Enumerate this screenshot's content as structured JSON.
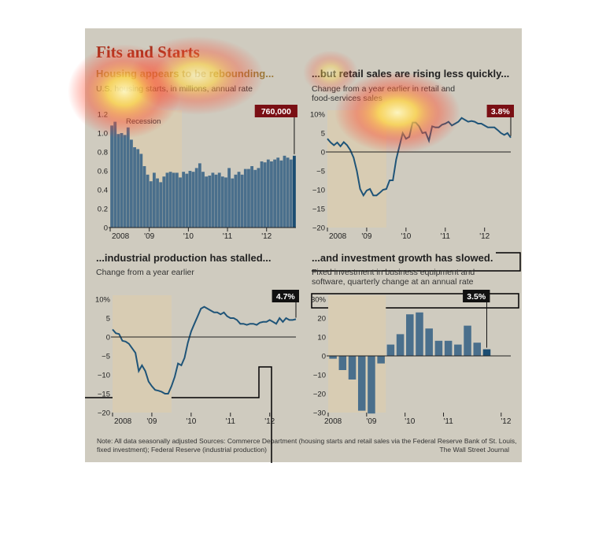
{
  "title": "Fits and Starts",
  "colors": {
    "panel_bg": "#cfcbbf",
    "recession_band": "#d8ccb3",
    "bar_blue": "#4a6f8c",
    "bar_highlight": "#1b4d72",
    "line_blue": "#1f5478",
    "title_red": "#a8321e",
    "callout_red": "#7a0f14",
    "callout_black": "#111111",
    "text": "#333333"
  },
  "chart_data": [
    {
      "id": "housing",
      "type": "bar",
      "title": "Housing appears to be rebounding...",
      "subtitle": "U.S. housing starts, in millions, annual rate",
      "shaded_label": "Recession",
      "callout": "760,000",
      "callout_color": "red",
      "shaded_range": [
        0,
        22
      ],
      "ylim": [
        0,
        1.2
      ],
      "yticks": [
        0,
        0.2,
        0.4,
        0.6,
        0.8,
        1.0,
        1.2
      ],
      "ytick_labels": [
        "0",
        "0.2",
        "0.4",
        "0.6",
        "0.8",
        "1.0",
        "1.2"
      ],
      "xlim": [
        0,
        57
      ],
      "xticks": [
        {
          "pos": 0,
          "label": "2008"
        },
        {
          "pos": 12,
          "label": "'09"
        },
        {
          "pos": 24,
          "label": "'10"
        },
        {
          "pos": 36,
          "label": "'11"
        },
        {
          "pos": 48,
          "label": "'12"
        }
      ],
      "values": [
        1.08,
        1.12,
        0.99,
        1.0,
        0.98,
        1.06,
        0.93,
        0.85,
        0.83,
        0.78,
        0.65,
        0.56,
        0.49,
        0.58,
        0.52,
        0.48,
        0.54,
        0.58,
        0.59,
        0.58,
        0.58,
        0.53,
        0.59,
        0.57,
        0.6,
        0.59,
        0.63,
        0.68,
        0.59,
        0.54,
        0.55,
        0.58,
        0.56,
        0.58,
        0.54,
        0.53,
        0.63,
        0.52,
        0.56,
        0.59,
        0.56,
        0.62,
        0.62,
        0.65,
        0.61,
        0.63,
        0.7,
        0.69,
        0.72,
        0.7,
        0.72,
        0.74,
        0.71,
        0.76,
        0.74,
        0.72,
        0.76
      ],
      "highlight_last": true
    },
    {
      "id": "retail",
      "type": "line",
      "title": "...but retail sales are rising less quickly...",
      "subtitle": "Change from a year earlier in retail and food-services sales",
      "callout": "3.8%",
      "callout_color": "red",
      "shaded_range": [
        0,
        18
      ],
      "ylim": [
        -20,
        10
      ],
      "yticks": [
        -20,
        -15,
        -10,
        -5,
        0,
        5,
        10
      ],
      "ytick_labels": [
        "−20",
        "−15",
        "−10",
        "−5",
        "0",
        "5",
        "10%"
      ],
      "xlim": [
        0,
        56
      ],
      "xticks": [
        {
          "pos": 0,
          "label": "2008"
        },
        {
          "pos": 12,
          "label": "'09"
        },
        {
          "pos": 24,
          "label": "'10"
        },
        {
          "pos": 36,
          "label": "'11"
        },
        {
          "pos": 48,
          "label": "'12"
        }
      ],
      "values": [
        3.5,
        2.5,
        1.8,
        2.5,
        1.5,
        2.6,
        1.8,
        0.5,
        -1.5,
        -5.0,
        -9.8,
        -11.5,
        -10.2,
        -9.8,
        -11.5,
        -11.5,
        -10.8,
        -10.0,
        -9.8,
        -7.5,
        -7.5,
        -2.0,
        1.5,
        5.0,
        3.5,
        4.0,
        7.8,
        7.8,
        6.8,
        5.0,
        5.2,
        3.0,
        6.8,
        6.5,
        6.5,
        7.2,
        7.5,
        8.0,
        7.0,
        7.5,
        8.0,
        9.0,
        8.5,
        8.0,
        8.2,
        8.0,
        7.5,
        7.5,
        7.0,
        6.5,
        6.5,
        6.5,
        5.8,
        5.0,
        4.5,
        5.0,
        3.8
      ]
    },
    {
      "id": "industrial",
      "type": "line",
      "title": "...industrial production has stalled...",
      "subtitle": "Change from a year earlier",
      "callout": "4.7%",
      "callout_color": "black",
      "shaded_range": [
        0,
        18
      ],
      "ylim": [
        -20,
        10
      ],
      "yticks": [
        -20,
        -15,
        -10,
        -5,
        0,
        5,
        10
      ],
      "ytick_labels": [
        "−20",
        "−15",
        "−10",
        "−5",
        "0",
        "5",
        "10%"
      ],
      "xlim": [
        0,
        56
      ],
      "xticks": [
        {
          "pos": 0,
          "label": "2008"
        },
        {
          "pos": 12,
          "label": "'09"
        },
        {
          "pos": 24,
          "label": "'10"
        },
        {
          "pos": 36,
          "label": "'11"
        },
        {
          "pos": 48,
          "label": "'12"
        }
      ],
      "values": [
        2.0,
        1.0,
        0.8,
        -1.0,
        -1.2,
        -1.8,
        -3.0,
        -4.2,
        -9.0,
        -7.5,
        -9.0,
        -11.8,
        -13.0,
        -14.0,
        -14.2,
        -14.5,
        -15.0,
        -15.0,
        -13.0,
        -10.5,
        -7.0,
        -7.5,
        -5.5,
        -1.5,
        1.5,
        3.5,
        5.5,
        7.5,
        8.0,
        7.5,
        7.0,
        6.5,
        6.5,
        6.0,
        6.5,
        5.5,
        5.0,
        5.0,
        4.5,
        3.5,
        3.5,
        3.2,
        3.5,
        3.5,
        3.2,
        3.8,
        4.0,
        4.0,
        4.5,
        4.0,
        3.5,
        5.0,
        4.0,
        5.0,
        4.5,
        4.5,
        4.7
      ]
    },
    {
      "id": "investment",
      "type": "bar",
      "title": "...and investment growth has slowed.",
      "subtitle": "Fixed investment in business equipment and software, quarterly change at an annual rate",
      "callout": "3.5%",
      "callout_color": "black",
      "shaded_range": [
        0,
        6
      ],
      "ylim": [
        -30,
        30
      ],
      "yticks": [
        -30,
        -20,
        -10,
        0,
        10,
        20,
        30
      ],
      "ytick_labels": [
        "−30",
        "−20",
        "−10",
        "0",
        "10",
        "20",
        "30%"
      ],
      "xlim": [
        0,
        19
      ],
      "xticks": [
        {
          "pos": 0.5,
          "label": "2008"
        },
        {
          "pos": 4.5,
          "label": "'09"
        },
        {
          "pos": 8.5,
          "label": "'10"
        },
        {
          "pos": 12.5,
          "label": "'11"
        },
        {
          "pos": 18.5,
          "label": "'12"
        }
      ],
      "values": [
        -1.5,
        -7.5,
        -12.5,
        -29.0,
        -30.5,
        -4.0,
        6.0,
        11.5,
        22.0,
        23.0,
        14.5,
        8.0,
        8.0,
        6.0,
        16.0,
        7.0,
        3.5
      ],
      "highlight_last": true
    }
  ],
  "footer": {
    "note": "Note: All data seasonally adjusted",
    "sources": "Sources: Commerce Department (housing starts and retail sales via the Federal Reserve Bank of St. Louis, fixed investment); Federal Reserve (industrial production)",
    "credit": "The Wall Street Journal"
  }
}
